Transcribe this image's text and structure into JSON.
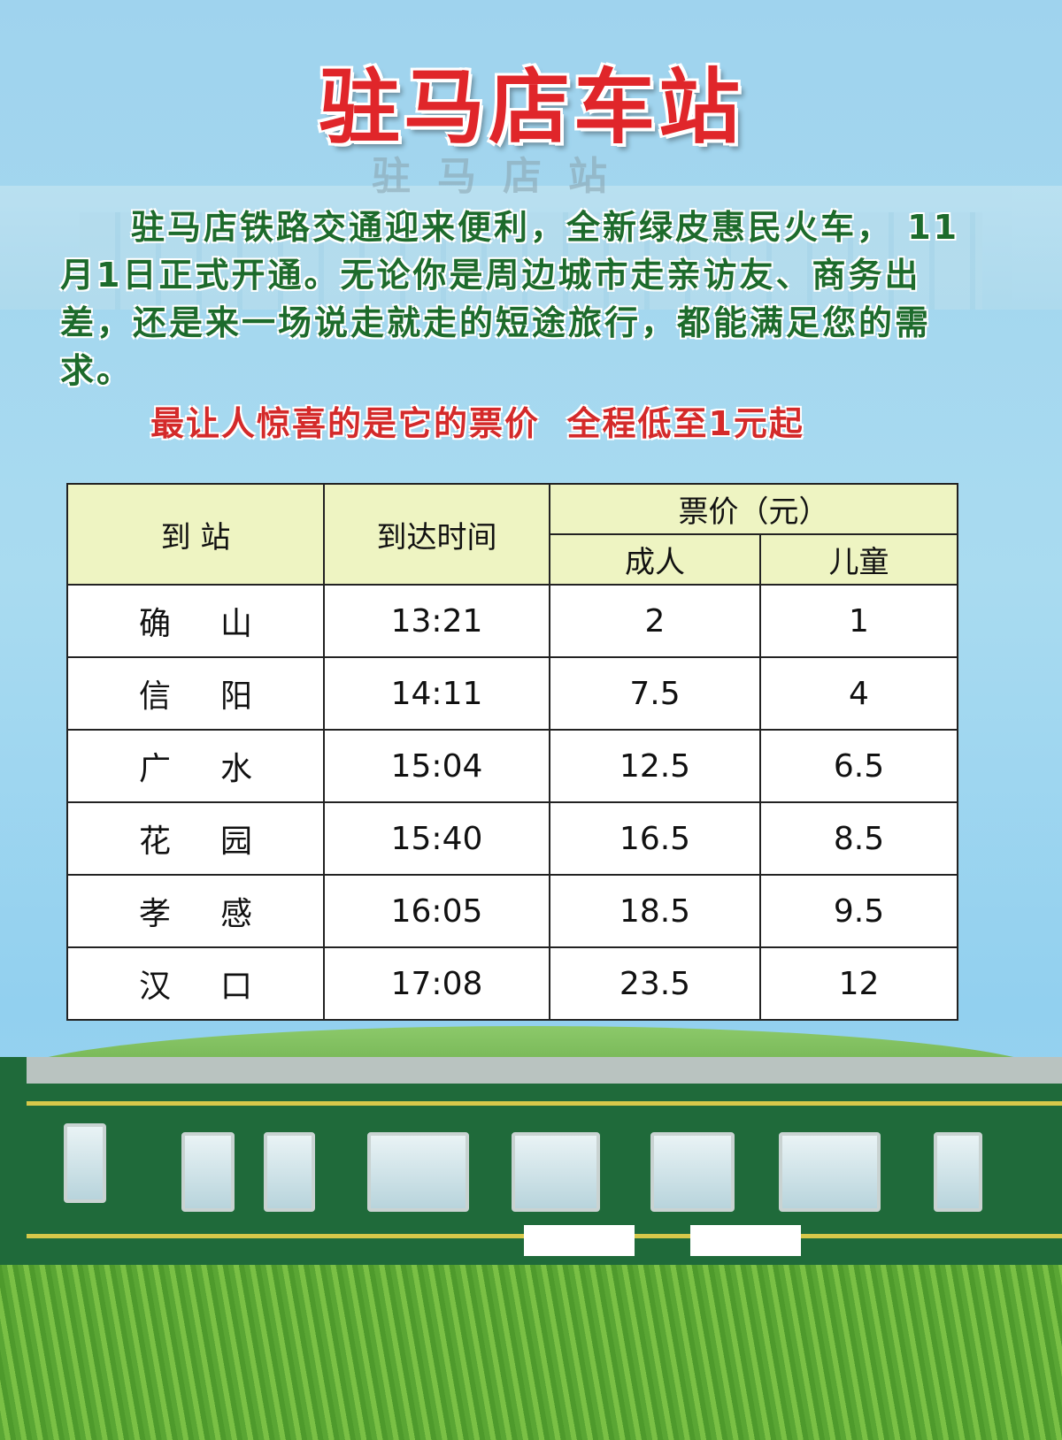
{
  "title": "驻马店车站",
  "building_sign": "驻马店站",
  "intro": "驻马店铁路交通迎来便利，全新绿皮惠民火车， 11月1日正式开通。无论你是周边城市走亲访友、商务出差，还是来一场说走就走的短途旅行，都能满足您的需求。",
  "promo": "最让人惊喜的是它的票价  全程低至1元起",
  "table": {
    "headers": {
      "station": "到 站",
      "arrival": "到达时间",
      "price": "票价（元）",
      "adult": "成人",
      "child": "儿童"
    },
    "rows": [
      {
        "station": "确山",
        "time": "13:21",
        "adult": "2",
        "child": "1"
      },
      {
        "station": "信阳",
        "time": "14:11",
        "adult": "7.5",
        "child": "4"
      },
      {
        "station": "广水",
        "time": "15:04",
        "adult": "12.5",
        "child": "6.5"
      },
      {
        "station": "花园",
        "time": "15:40",
        "adult": "16.5",
        "child": "8.5"
      },
      {
        "station": "孝感",
        "time": "16:05",
        "adult": "18.5",
        "child": "9.5"
      },
      {
        "station": "汉口",
        "time": "17:08",
        "adult": "23.5",
        "child": "12"
      }
    ]
  },
  "colors": {
    "title": "#e0262a",
    "intro": "#1d6b2c",
    "promo": "#d42a2a",
    "header_bg": "#eef4c2",
    "train": "#1f6a3a"
  }
}
